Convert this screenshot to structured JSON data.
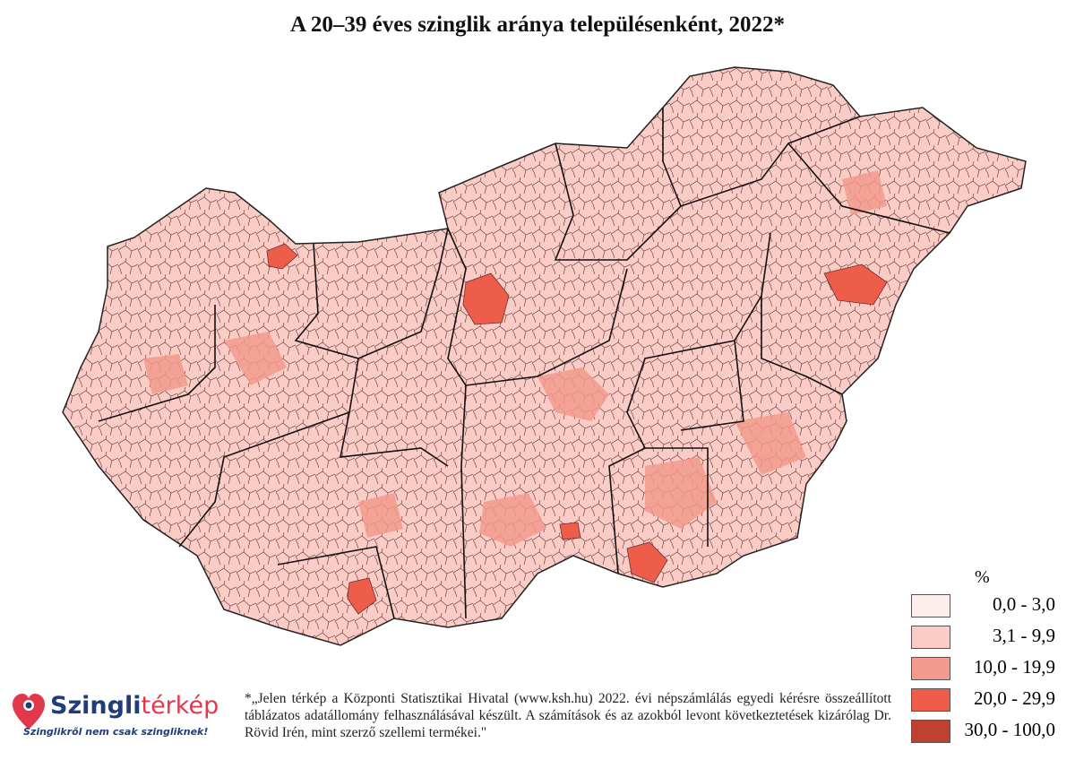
{
  "title": "A 20–39 éves szinglik aránya településenként, 2022*",
  "legend": {
    "unit": "%",
    "items": [
      {
        "label": "0,0 - 3,0",
        "color": "#fdeeec"
      },
      {
        "label": "3,1 - 9,9",
        "color": "#f9cdc6"
      },
      {
        "label": "10,0 - 19,9",
        "color": "#f29a8c"
      },
      {
        "label": "20,0 - 29,9",
        "color": "#ee5c4a"
      },
      {
        "label": "30,0 - 100,0",
        "color": "#c2402f"
      }
    ]
  },
  "footnote": "*„Jelen térkép a Központi Statisztikai Hivatal (www.ksh.hu) 2022. évi népszámlálás egyedi kérésre összeállított táblázatos adatállomány felhasználásával készült. A számítások és az azokból levont következtetések kizárólag Dr. Rövid Irén, mint szerző szellemi termékei.\"",
  "logo": {
    "name_part1": "Szingli",
    "name_part2": "térkép",
    "tagline": "Szinglikről nem csak szingliknek!"
  }
}
